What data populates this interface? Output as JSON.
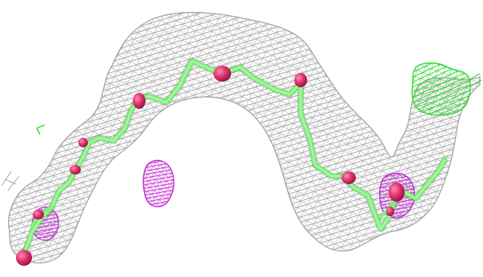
{
  "scene": {
    "background": "#ffffff",
    "colors": {
      "density_mesh": "#a8a8a8",
      "positive_difference_mesh": "#3de03d",
      "negative_difference_mesh": "#c22bd1",
      "carbon_bonds": "#7ff07a",
      "oxygen_atoms": "#e0326e"
    },
    "elements": [
      "electron-density-mesh",
      "molecule-stick-model",
      "oxygen-atom-spheres",
      "positive-difference-mesh",
      "negative-difference-mesh"
    ]
  }
}
